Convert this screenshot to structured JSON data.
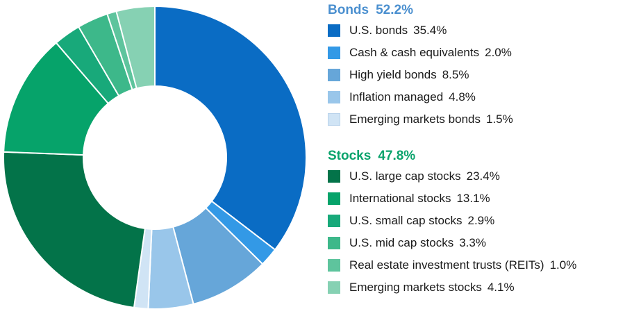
{
  "chart_data": {
    "type": "pie",
    "groups": [
      {
        "name": "Bonds",
        "total": "52.2%",
        "color": "#4a8fcf",
        "items": [
          {
            "label": "U.S. bonds",
            "value": 35.4,
            "display": "35.4%",
            "color": "#0a6cc4"
          },
          {
            "label": "Cash & cash equivalents",
            "value": 2.0,
            "display": "2.0%",
            "color": "#3399e6"
          },
          {
            "label": "High yield bonds",
            "value": 8.5,
            "display": "8.5%",
            "color": "#66a6d9"
          },
          {
            "label": "Inflation managed",
            "value": 4.8,
            "display": "4.8%",
            "color": "#99c6ea"
          },
          {
            "label": "Emerging markets bonds",
            "value": 1.5,
            "display": "1.5%",
            "color": "#d0e4f5"
          }
        ]
      },
      {
        "name": "Stocks",
        "total": "47.8%",
        "color": "#0aa36c",
        "items": [
          {
            "label": "U.S. large cap stocks",
            "value": 23.4,
            "display": "23.4%",
            "color": "#037349"
          },
          {
            "label": "International stocks",
            "value": 13.1,
            "display": "13.1%",
            "color": "#06a36a"
          },
          {
            "label": "U.S. small cap stocks",
            "value": 2.9,
            "display": "2.9%",
            "color": "#18a97a"
          },
          {
            "label": "U.S. mid cap stocks",
            "value": 3.3,
            "display": "3.3%",
            "color": "#3db88a"
          },
          {
            "label": "Real estate investment trusts (REITs)",
            "value": 1.0,
            "display": "1.0%",
            "color": "#5ec49d"
          },
          {
            "label": "Emerging markets stocks",
            "value": 4.1,
            "display": "4.1%",
            "color": "#86d1b3"
          }
        ]
      }
    ]
  }
}
